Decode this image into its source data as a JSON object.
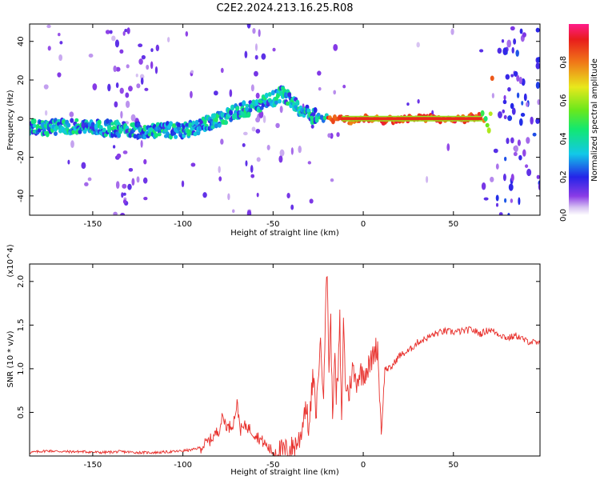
{
  "figure_title": "C2E2.2024.213.16.25.R08",
  "colorbar": {
    "label": "Normalized spectral amplitude",
    "ticks": [
      "0.0",
      "0.2",
      "0.4",
      "0.6",
      "0.8"
    ]
  },
  "chart_data": [
    {
      "type": "heatmap",
      "title": "",
      "xlabel": "Height of straight line (km)",
      "ylabel": "Frequency (Hz)",
      "xlim": [
        -185,
        98
      ],
      "ylim": [
        -50,
        49
      ],
      "xticks": [
        -150,
        -100,
        -50,
        0,
        50
      ],
      "yticks": [
        -40,
        -20,
        0,
        20,
        40
      ],
      "xtick_labels": [
        "-150",
        "-100",
        "-50",
        "0",
        "50"
      ],
      "ytick_labels": [
        "-40",
        "-20",
        "0",
        "20",
        "40"
      ],
      "value_range": [
        0,
        1
      ],
      "colormap": "rainbow (white/violet low to red high)",
      "ridge": {
        "x": [
          -185,
          -160,
          -140,
          -120,
          -100,
          -90,
          -80,
          -70,
          -60,
          -55,
          -50,
          -45,
          -40,
          -35,
          -30,
          -25,
          -22,
          -20,
          -15,
          -10,
          0,
          10,
          20,
          40,
          60,
          66,
          68,
          70,
          72
        ],
        "y": [
          -5,
          -4,
          -5,
          -6,
          -6,
          -4,
          0,
          4,
          6,
          8,
          10,
          13,
          10,
          5,
          2,
          1,
          0,
          1,
          0,
          -1,
          0,
          -1,
          0,
          0,
          0,
          2,
          -2,
          -7,
          30
        ]
      },
      "grid": false
    },
    {
      "type": "line",
      "title": "",
      "xlabel": "Height of straight line (km)",
      "ylabel": "SNR (10 * v/v)",
      "y_multiplier": "(x10^4)",
      "xlim": [
        -185,
        98
      ],
      "ylim": [
        0,
        2.2
      ],
      "xticks": [
        -150,
        -100,
        -50,
        0,
        50
      ],
      "yticks": [
        0.5,
        1.0,
        1.5,
        2.0
      ],
      "xtick_labels": [
        "-150",
        "-100",
        "-50",
        "0",
        "50"
      ],
      "ytick_labels": [
        "0.5",
        "1.0",
        "1.5",
        "2.0"
      ],
      "color": "#e8302c",
      "grid": false,
      "series": [
        {
          "x": [
            -185,
            -175,
            -165,
            -155,
            -145,
            -135,
            -125,
            -115,
            -105,
            -95,
            -90,
            -85,
            -80,
            -78,
            -75,
            -72,
            -70,
            -68,
            -65,
            -60,
            -55,
            -52,
            -50,
            -45,
            -40,
            -35,
            -32,
            -30,
            -28,
            -26,
            -24,
            -22,
            -21,
            -20,
            -19,
            -18,
            -17,
            -16,
            -15,
            -14,
            -13,
            -12,
            -11,
            -10,
            -8,
            -6,
            -4,
            -2,
            0,
            2,
            4,
            6,
            8,
            10,
            12,
            15,
            20,
            25,
            30,
            35,
            40,
            45,
            50,
            55,
            60,
            65,
            70,
            75,
            80,
            85,
            90,
            95,
            98
          ],
          "y": [
            0.04,
            0.06,
            0.05,
            0.05,
            0.04,
            0.05,
            0.04,
            0.04,
            0.05,
            0.07,
            0.1,
            0.18,
            0.3,
            0.45,
            0.32,
            0.38,
            0.6,
            0.3,
            0.35,
            0.25,
            0.15,
            0.08,
            0.05,
            0.05,
            0.08,
            0.2,
            0.6,
            0.3,
            0.9,
            0.5,
            1.3,
            0.8,
            1.6,
            2.15,
            1.0,
            1.55,
            0.4,
            1.2,
            0.7,
            0.9,
            1.55,
            0.3,
            1.6,
            0.85,
            0.7,
            1.0,
            0.85,
            0.95,
            0.95,
            1.0,
            1.05,
            1.2,
            1.25,
            0.25,
            1.0,
            1.0,
            1.15,
            1.2,
            1.3,
            1.35,
            1.4,
            1.43,
            1.42,
            1.43,
            1.45,
            1.4,
            1.45,
            1.4,
            1.35,
            1.38,
            1.32,
            1.3,
            1.28
          ]
        }
      ]
    }
  ]
}
